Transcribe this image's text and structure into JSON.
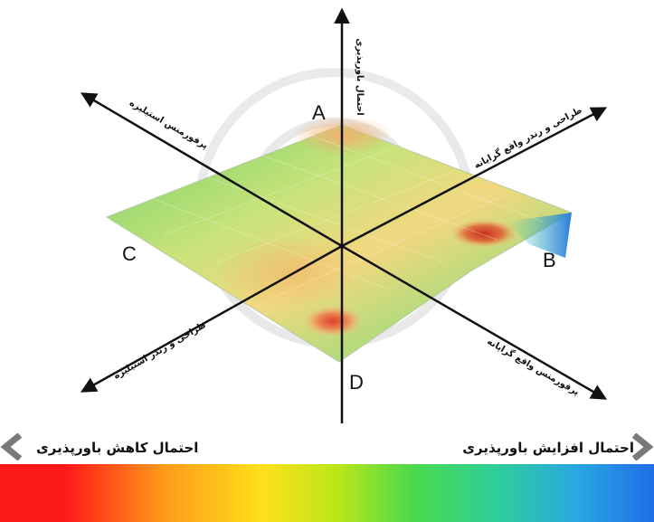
{
  "axes": {
    "vertical_up": "احتمال باورپذیری",
    "upper_left": "پرفورمنس استیلیزه",
    "upper_right": "طراحی و رندر واقع گرایانه",
    "lower_left": "طراحی و رندر استیلیزه",
    "lower_right": "پرفورمنس واقع گرایانه"
  },
  "corners": {
    "a": "A",
    "b": "B",
    "c": "C",
    "d": "D"
  },
  "legend": {
    "decrease": "احتمال کاهش باورپذیری",
    "increase": "احتمال افزایش باورپذیری"
  },
  "colors": {
    "high": "#ff1a1a",
    "mid": "#ffe01a",
    "neutral": "#4cd94c",
    "low": "#1f6ee8",
    "chevron": "#7a7a7a"
  }
}
